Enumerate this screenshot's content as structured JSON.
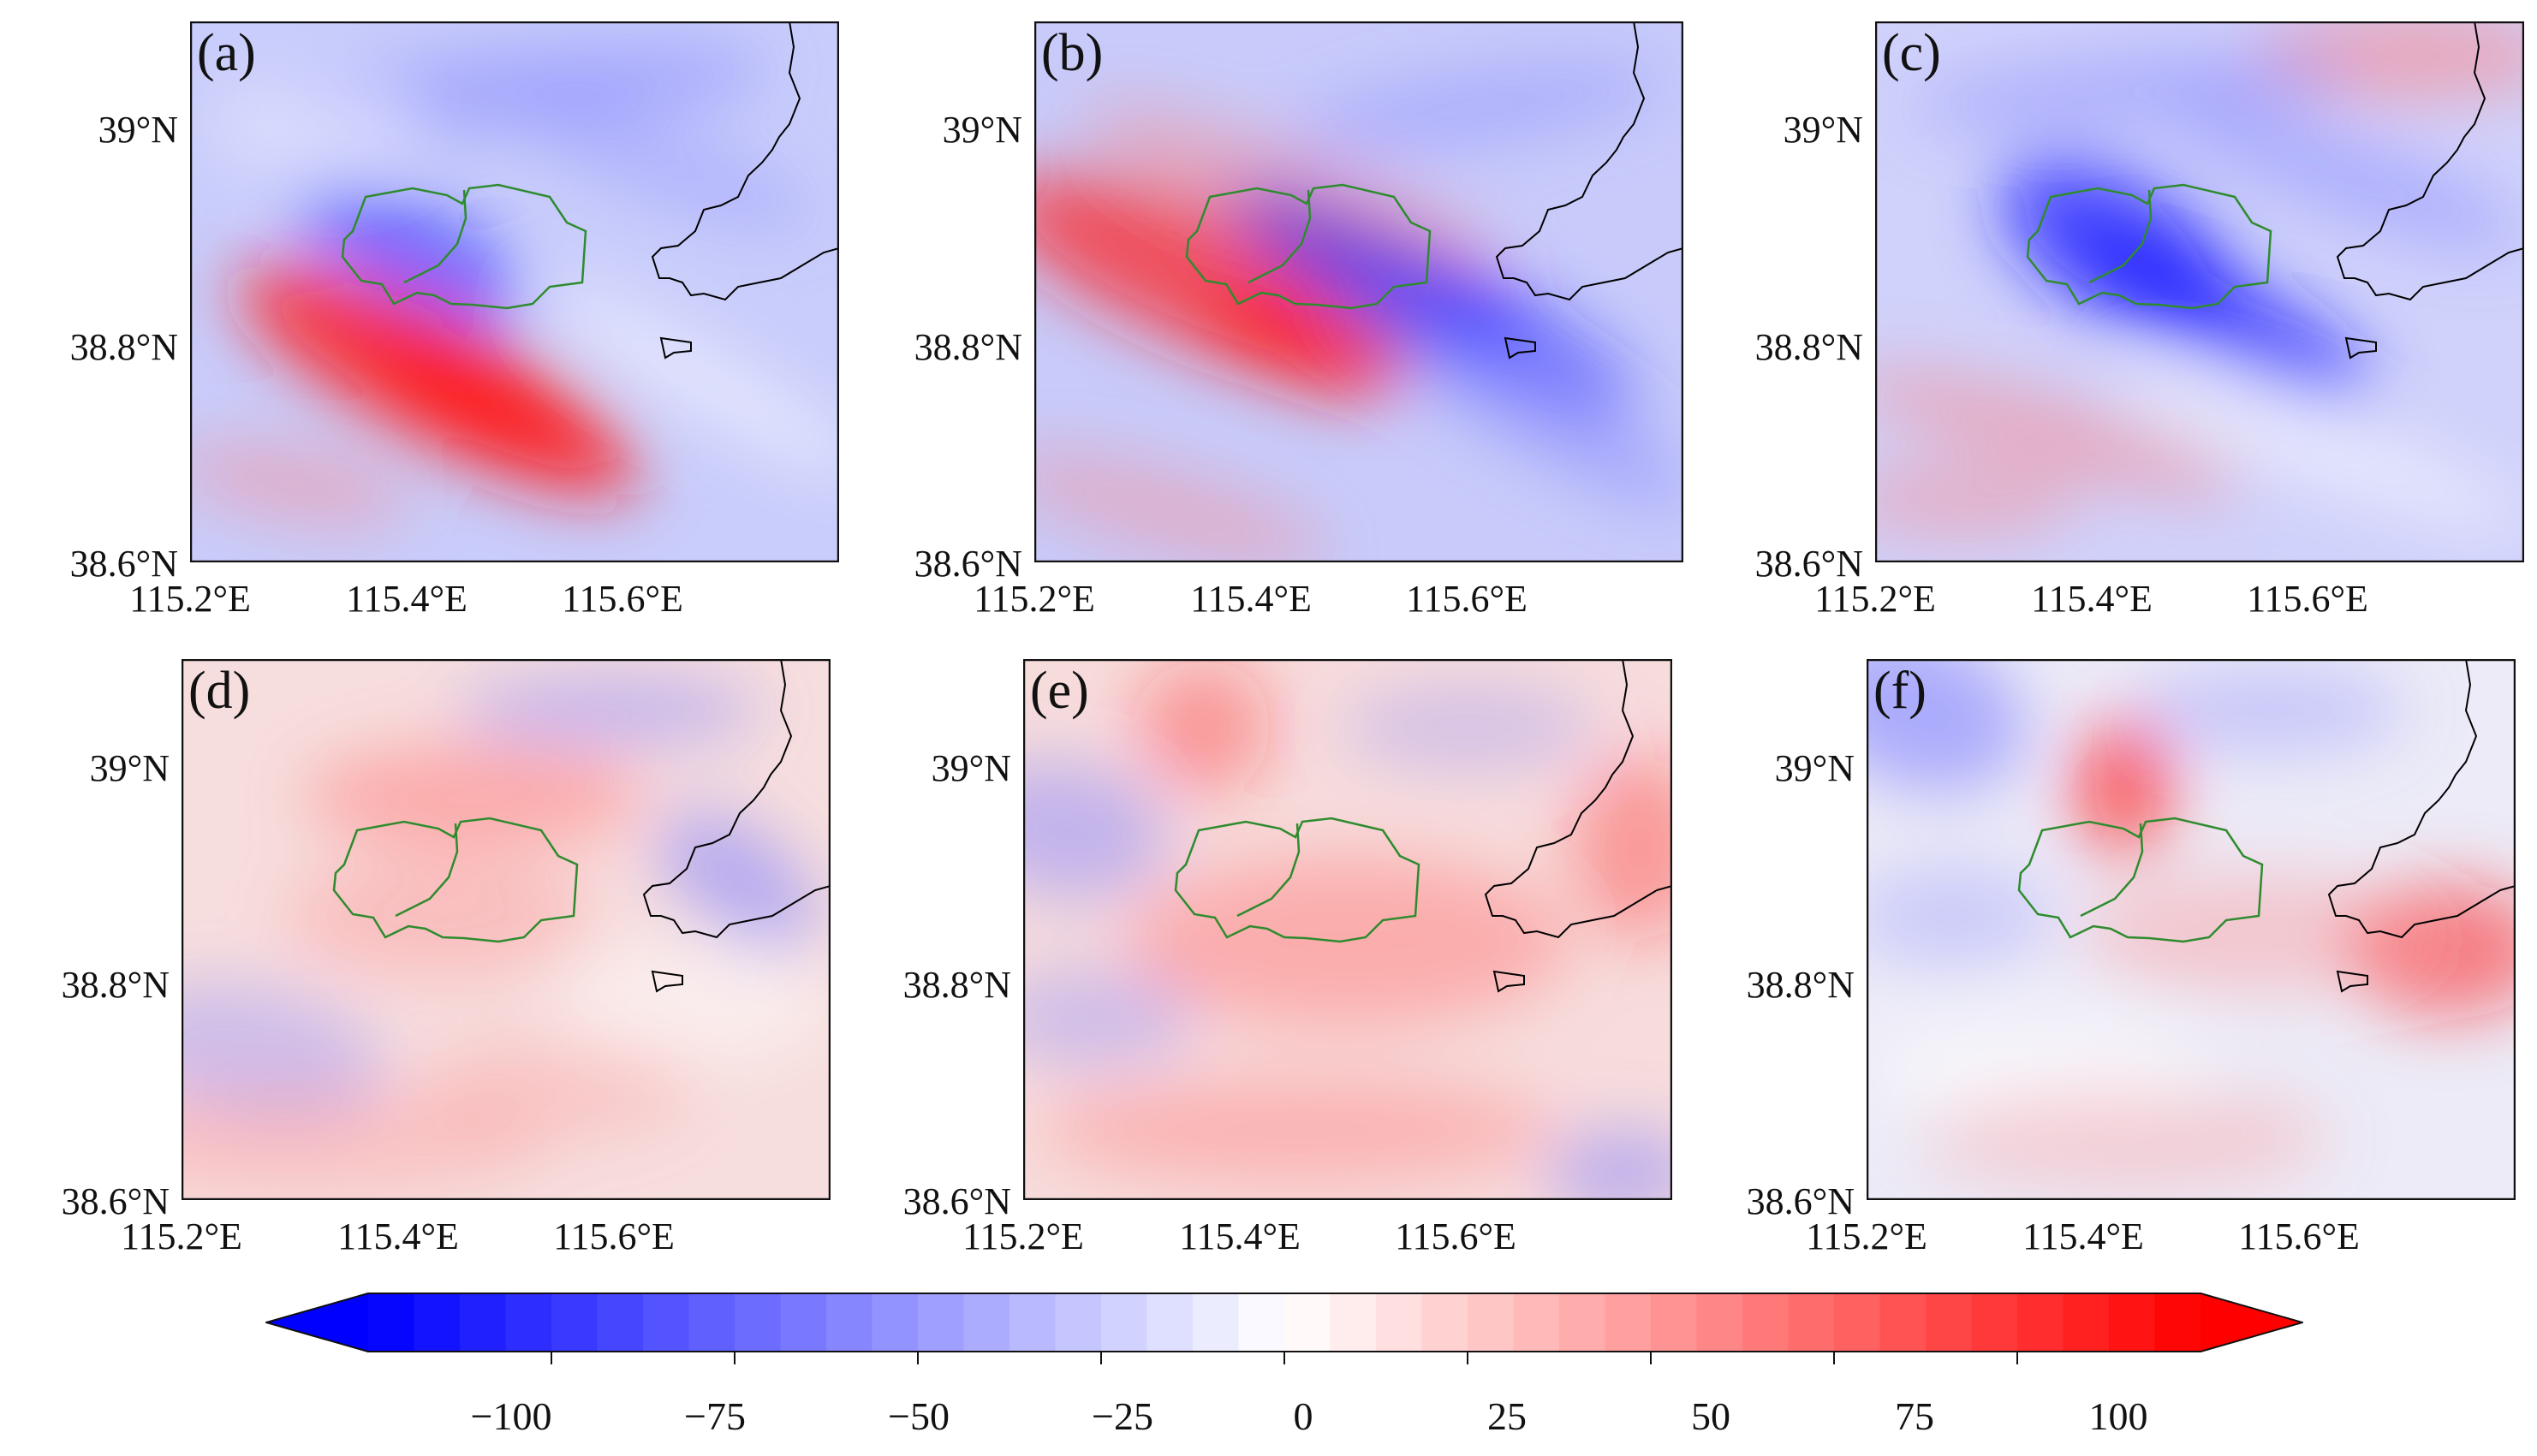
{
  "panels": [
    {
      "label": "(a)",
      "pattern": "a"
    },
    {
      "label": "(b)",
      "pattern": "b"
    },
    {
      "label": "(c)",
      "pattern": "c"
    },
    {
      "label": "(d)",
      "pattern": "d"
    },
    {
      "label": "(e)",
      "pattern": "e"
    },
    {
      "label": "(f)",
      "pattern": "f"
    }
  ],
  "y_ticks": [
    "39°N",
    "38.8°N",
    "38.6°N"
  ],
  "x_ticks": [
    "115.2°E",
    "115.4°E",
    "115.6°E"
  ],
  "colorbar": {
    "ticks": [
      "−100",
      "−75",
      "−50",
      "−25",
      "0",
      "25",
      "50",
      "75",
      "100"
    ],
    "tick_values": [
      -100,
      -75,
      -50,
      -25,
      0,
      25,
      50,
      75,
      100
    ],
    "range": [
      -125,
      125
    ],
    "colors": {
      "low": "#0000ff",
      "mid": "#ffffff",
      "high": "#ff0000"
    }
  },
  "colors": {
    "boundary_green": "#2e8b2e",
    "border_black": "#000000"
  }
}
